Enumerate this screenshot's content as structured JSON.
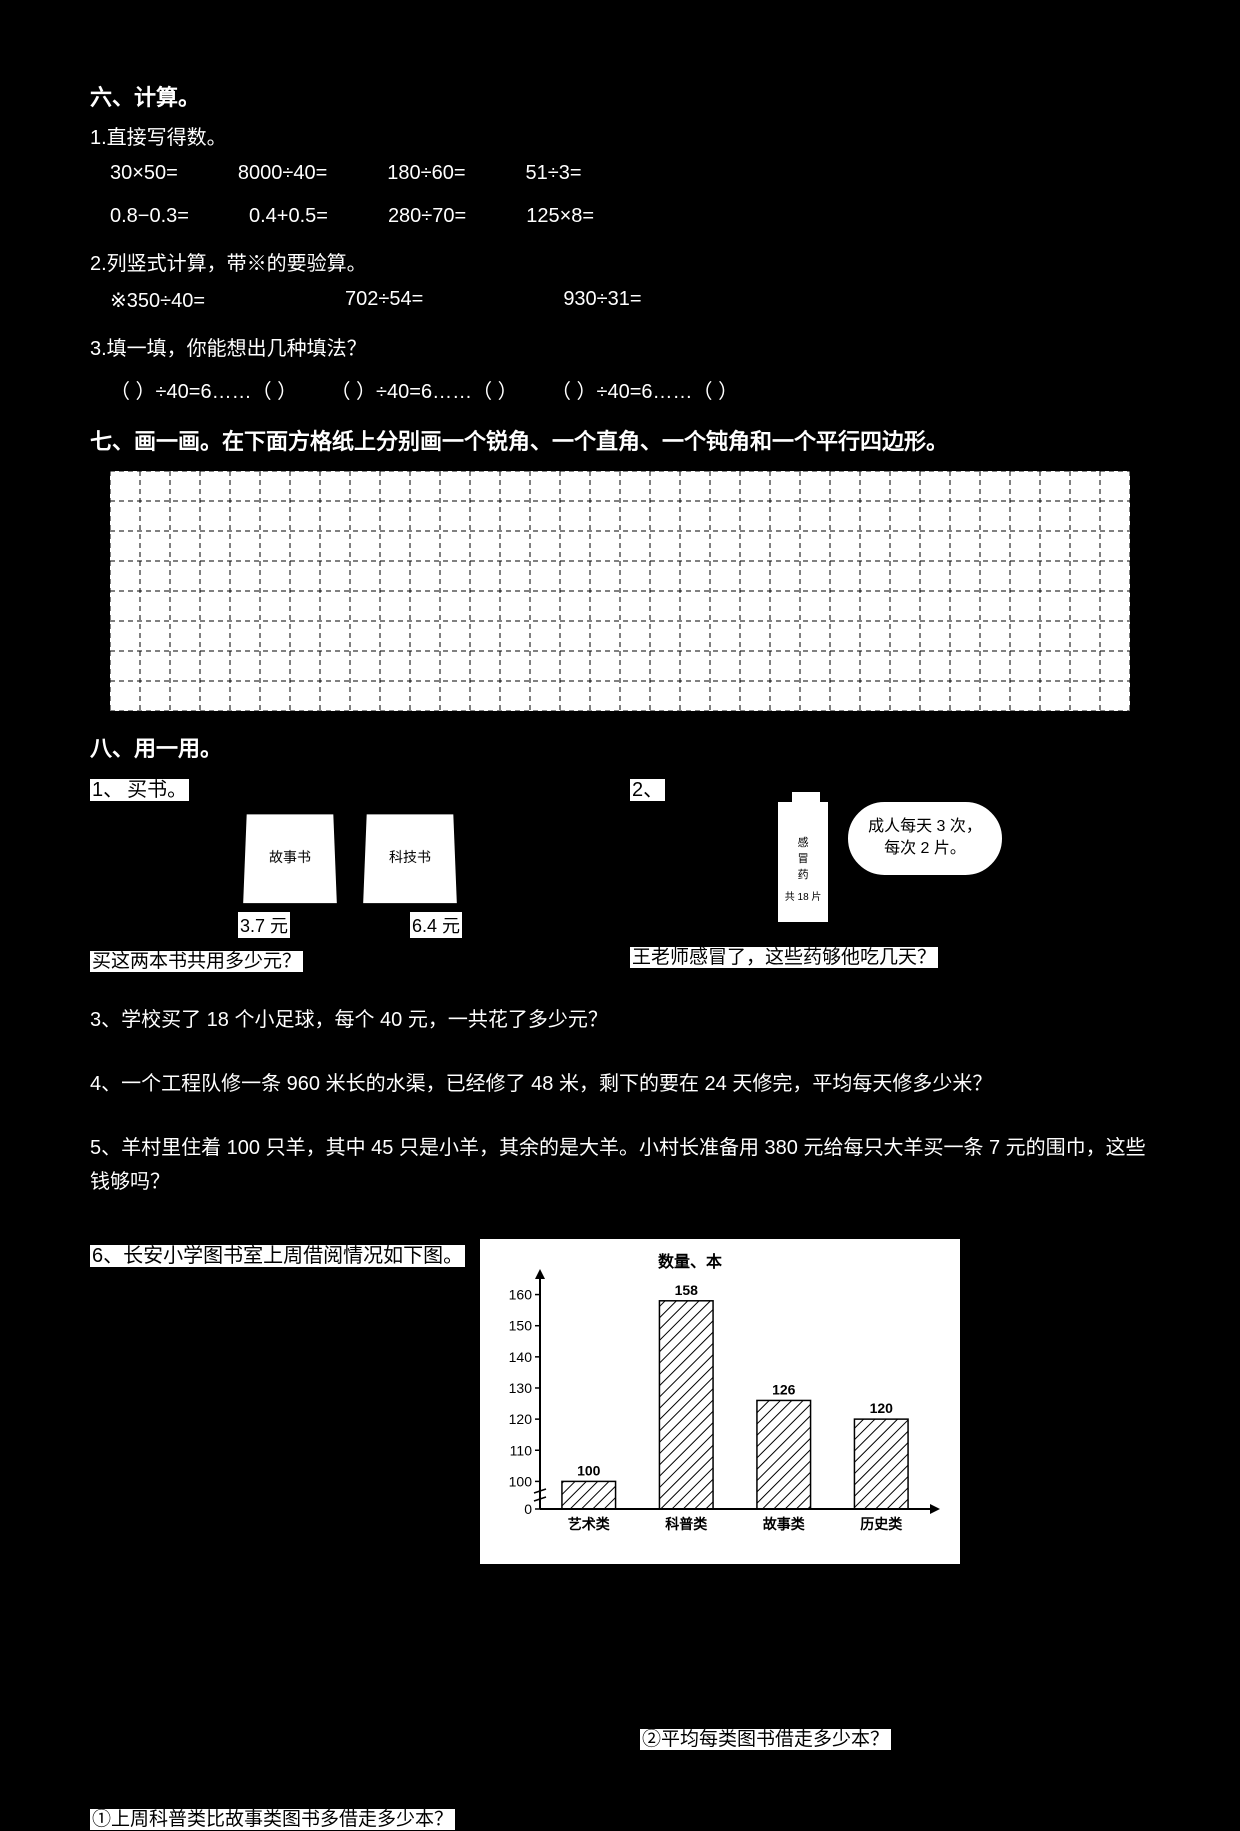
{
  "section6": {
    "title": "六、计算。",
    "q1_label": "1.直接写得数。",
    "row1": [
      "30×50=",
      "8000÷40=",
      "180÷60=",
      "51÷3="
    ],
    "row2": [
      "0.8−0.3=",
      "0.4+0.5=",
      "280÷70=",
      "125×8="
    ],
    "q2_label": "2.列竖式计算，带※的要验算。",
    "row3": [
      "※350÷40=",
      "702÷54=",
      "930÷31="
    ],
    "q3_label": "3.填一填，你能想出几种填法？",
    "fill1": "（ ）÷40=6……（ ）",
    "fill2": "（ ）÷40=6……（ ）",
    "fill3": "（ ）÷40=6……（ ）"
  },
  "section7": {
    "title": "七、画一画。在下面方格纸上分别画一个锐角、一个直角、一个钝角和一个平行四边形。"
  },
  "section8": {
    "title": "八、用一用。",
    "q1": {
      "num": "1、",
      "label": "买书。",
      "book1_title": "故事书",
      "book2_title": "科技书",
      "price1": "3.7 元",
      "price2": "6.4 元",
      "question": "买这两本书共用多少元？"
    },
    "q2": {
      "num": "2、",
      "bottle_line1": "感",
      "bottle_line2": "冒",
      "bottle_line3": "药",
      "bottle_line4": "共 18 片",
      "cloud_line1": "成人每天 3 次，",
      "cloud_line2": "每次 2 片。",
      "question": "王老师感冒了，这些药够他吃几天？"
    },
    "q3": "3、学校买了 18 个小足球，每个 40 元，一共花了多少元？",
    "q4": "4、一个工程队修一条 960 米长的水渠，已经修了 48 米，剩下的要在 24 天修完，平均每天修多少米？",
    "q5": "5、羊村里住着 100 只羊，其中 45 只是小羊，其余的是大羊。小村长准备用 380 元给每只大羊买一条 7 元的围巾，这些钱够吗？",
    "q6": {
      "label": "6、长安小学图书室上周借阅情况如下图。",
      "chart": {
        "type": "bar",
        "title": "数量、本",
        "categories": [
          "艺术类",
          "科普类",
          "故事类",
          "历史类"
        ],
        "values": [
          100,
          158,
          126,
          120
        ],
        "value_labels": [
          "100",
          "158",
          "126",
          "120"
        ],
        "ylim": [
          0,
          165
        ],
        "yticks": [
          0,
          100,
          110,
          120,
          130,
          140,
          150,
          160
        ],
        "ytick_labels": [
          "0",
          "100",
          "110",
          "120",
          "130",
          "140",
          "150",
          "160"
        ],
        "bar_fill": "#ffffff",
        "bar_stroke": "#000000",
        "hatch": "diagonal",
        "background": "#ffffff",
        "axis_color": "#000000",
        "label_fontsize": 14,
        "value_fontsize": 14
      },
      "sub1": "①上周科普类比故事类图书多借走多少本？",
      "sub2": "②平均每类图书借走多少本？"
    }
  }
}
